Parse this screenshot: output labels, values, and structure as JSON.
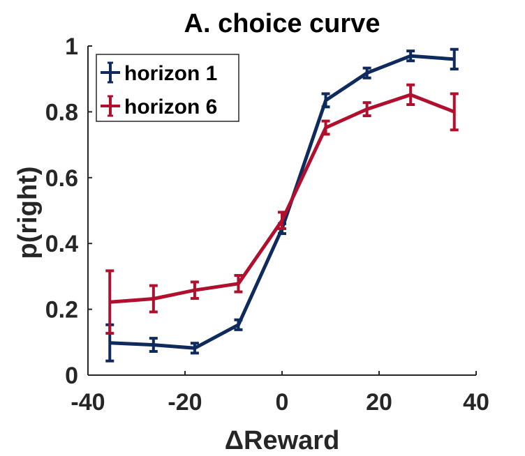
{
  "chart_data": {
    "type": "line",
    "title": "A. choice curve",
    "xlabel": "ΔReward",
    "ylabel": "p(right)",
    "xlim": [
      -40,
      40
    ],
    "ylim": [
      0,
      1
    ],
    "xticks": [
      -40,
      -20,
      0,
      20,
      40
    ],
    "yticks": [
      0,
      0.2,
      0.4,
      0.6,
      0.8,
      1
    ],
    "ytick_labels": [
      "0",
      "0.2",
      "0.4",
      "0.6",
      "0.8",
      "1"
    ],
    "grid": false,
    "legend_position": "top-left",
    "x": [
      -35.5,
      -26.5,
      -18,
      -9,
      0,
      9,
      17.5,
      26.5,
      35.5
    ],
    "series": [
      {
        "name": "horizon 1",
        "color": "#0f2a5c",
        "values": [
          0.098,
          0.092,
          0.082,
          0.153,
          0.445,
          0.835,
          0.918,
          0.97,
          0.96
        ],
        "errors": [
          0.055,
          0.02,
          0.015,
          0.015,
          0.015,
          0.02,
          0.015,
          0.015,
          0.03
        ]
      },
      {
        "name": "horizon 6",
        "color": "#b0102e",
        "values": [
          0.222,
          0.232,
          0.258,
          0.278,
          0.47,
          0.752,
          0.808,
          0.852,
          0.8
        ],
        "errors": [
          0.095,
          0.04,
          0.025,
          0.025,
          0.025,
          0.02,
          0.02,
          0.03,
          0.055
        ]
      }
    ]
  }
}
